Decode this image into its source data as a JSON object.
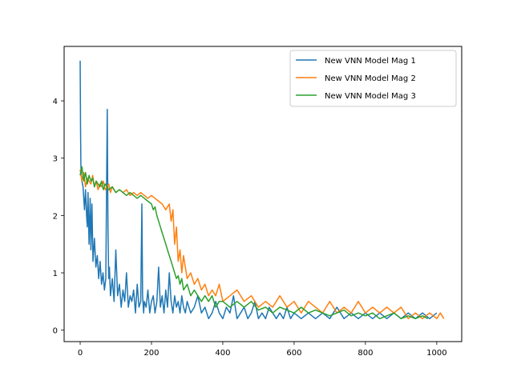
{
  "chart_data": {
    "type": "line",
    "title": "",
    "xlabel": "",
    "ylabel": "",
    "xlim": [
      -45,
      1070
    ],
    "ylim": [
      -0.2,
      4.95
    ],
    "xticks": [
      0,
      200,
      400,
      600,
      800,
      1000
    ],
    "yticks": [
      0,
      1,
      2,
      3,
      4
    ],
    "grid": false,
    "legend_position": "top-right",
    "series": [
      {
        "name": "New VNN Model Mag 1",
        "color": "#1f77b4",
        "x": [
          0,
          1,
          2,
          3,
          5,
          8,
          10,
          12,
          15,
          18,
          20,
          22,
          25,
          28,
          30,
          33,
          36,
          40,
          44,
          48,
          52,
          56,
          60,
          64,
          68,
          72,
          76,
          78,
          80,
          82,
          85,
          90,
          95,
          100,
          105,
          110,
          115,
          120,
          125,
          130,
          135,
          140,
          145,
          150,
          155,
          160,
          165,
          170,
          173,
          175,
          178,
          180,
          185,
          190,
          195,
          200,
          205,
          210,
          215,
          220,
          225,
          230,
          235,
          240,
          245,
          250,
          255,
          260,
          265,
          270,
          275,
          280,
          285,
          290,
          295,
          300,
          310,
          320,
          330,
          340,
          350,
          360,
          370,
          380,
          390,
          400,
          410,
          420,
          430,
          440,
          450,
          460,
          470,
          480,
          490,
          500,
          510,
          520,
          530,
          540,
          550,
          560,
          570,
          580,
          590,
          600,
          620,
          640,
          660,
          680,
          700,
          720,
          740,
          760,
          780,
          800,
          820,
          840,
          860,
          880,
          900,
          920,
          940,
          960,
          980,
          1000
        ],
        "y": [
          4.7,
          3.5,
          2.9,
          2.7,
          2.6,
          2.5,
          2.3,
          2.1,
          2.45,
          2.0,
          1.8,
          2.4,
          1.5,
          2.3,
          1.4,
          2.2,
          1.2,
          1.6,
          1.1,
          1.3,
          0.9,
          1.2,
          0.8,
          1.0,
          0.7,
          0.9,
          3.85,
          1.8,
          0.9,
          1.1,
          0.6,
          0.9,
          0.5,
          1.4,
          0.6,
          0.8,
          0.4,
          0.7,
          0.5,
          1.0,
          0.4,
          0.6,
          0.5,
          0.7,
          0.3,
          0.8,
          0.4,
          0.5,
          2.2,
          0.6,
          0.3,
          0.5,
          0.4,
          0.7,
          0.3,
          0.5,
          0.6,
          0.3,
          0.5,
          1.1,
          0.4,
          0.6,
          0.3,
          0.7,
          0.4,
          1.0,
          0.5,
          0.3,
          0.6,
          0.4,
          0.5,
          0.3,
          0.6,
          0.4,
          0.3,
          0.5,
          0.3,
          0.4,
          0.6,
          0.3,
          0.4,
          0.2,
          0.3,
          0.5,
          0.3,
          0.2,
          0.4,
          0.3,
          0.6,
          0.2,
          0.3,
          0.4,
          0.2,
          0.3,
          0.5,
          0.2,
          0.3,
          0.2,
          0.4,
          0.3,
          0.2,
          0.3,
          0.2,
          0.4,
          0.2,
          0.3,
          0.2,
          0.3,
          0.2,
          0.3,
          0.2,
          0.4,
          0.2,
          0.3,
          0.2,
          0.3,
          0.2,
          0.3,
          0.2,
          0.3,
          0.2,
          0.3,
          0.2,
          0.3,
          0.2,
          0.3
        ]
      },
      {
        "name": "New VNN Model Mag 2",
        "color": "#ff7f0e",
        "x": [
          0,
          5,
          10,
          15,
          20,
          25,
          30,
          35,
          40,
          45,
          50,
          55,
          60,
          65,
          70,
          75,
          80,
          85,
          90,
          95,
          100,
          110,
          120,
          130,
          140,
          150,
          160,
          170,
          180,
          190,
          200,
          210,
          220,
          230,
          240,
          250,
          255,
          260,
          265,
          270,
          275,
          280,
          285,
          290,
          295,
          300,
          310,
          320,
          330,
          340,
          350,
          360,
          370,
          380,
          390,
          400,
          420,
          440,
          460,
          480,
          500,
          520,
          540,
          560,
          580,
          600,
          620,
          640,
          660,
          680,
          700,
          720,
          740,
          760,
          780,
          800,
          820,
          840,
          860,
          880,
          900,
          920,
          940,
          960,
          980,
          1000,
          1010,
          1020
        ],
        "y": [
          2.8,
          2.6,
          2.75,
          2.5,
          2.65,
          2.6,
          2.55,
          2.7,
          2.5,
          2.6,
          2.45,
          2.55,
          2.5,
          2.6,
          2.45,
          2.5,
          2.55,
          2.4,
          2.5,
          2.45,
          2.4,
          2.45,
          2.4,
          2.45,
          2.35,
          2.4,
          2.35,
          2.4,
          2.35,
          2.3,
          2.35,
          2.3,
          2.25,
          2.2,
          2.1,
          2.2,
          1.9,
          2.1,
          1.5,
          1.8,
          1.2,
          1.4,
          1.0,
          1.3,
          1.1,
          0.9,
          1.0,
          0.8,
          0.9,
          0.7,
          0.8,
          0.6,
          0.7,
          0.6,
          0.8,
          0.5,
          0.6,
          0.7,
          0.5,
          0.6,
          0.4,
          0.5,
          0.4,
          0.6,
          0.4,
          0.5,
          0.3,
          0.5,
          0.4,
          0.3,
          0.5,
          0.3,
          0.4,
          0.3,
          0.5,
          0.3,
          0.4,
          0.3,
          0.4,
          0.3,
          0.4,
          0.2,
          0.3,
          0.2,
          0.3,
          0.2,
          0.3,
          0.2
        ]
      },
      {
        "name": "New VNN Model Mag 3",
        "color": "#2ca02c",
        "x": [
          0,
          5,
          10,
          15,
          20,
          25,
          30,
          35,
          40,
          45,
          50,
          55,
          60,
          65,
          70,
          75,
          80,
          90,
          100,
          110,
          120,
          130,
          140,
          150,
          160,
          170,
          180,
          190,
          200,
          205,
          210,
          215,
          220,
          225,
          230,
          235,
          240,
          245,
          250,
          255,
          260,
          265,
          270,
          275,
          280,
          285,
          290,
          300,
          310,
          320,
          330,
          340,
          350,
          360,
          370,
          380,
          390,
          400,
          420,
          440,
          460,
          480,
          500,
          520,
          540,
          560,
          580,
          600,
          620,
          640,
          660,
          680,
          700,
          720,
          740,
          760,
          780,
          800,
          820,
          840,
          860,
          880,
          900,
          920,
          940,
          960,
          975
        ],
        "y": [
          2.7,
          2.85,
          2.6,
          2.75,
          2.55,
          2.7,
          2.6,
          2.65,
          2.5,
          2.6,
          2.55,
          2.5,
          2.6,
          2.45,
          2.55,
          2.5,
          2.45,
          2.5,
          2.4,
          2.45,
          2.4,
          2.35,
          2.4,
          2.35,
          2.3,
          2.35,
          2.3,
          2.25,
          2.2,
          2.1,
          2.15,
          2.0,
          1.9,
          1.8,
          1.7,
          1.6,
          1.5,
          1.4,
          1.3,
          1.2,
          1.1,
          1.0,
          0.9,
          0.95,
          0.8,
          0.9,
          0.7,
          0.8,
          0.6,
          0.7,
          0.6,
          0.5,
          0.6,
          0.5,
          0.6,
          0.4,
          0.5,
          0.5,
          0.4,
          0.5,
          0.4,
          0.5,
          0.35,
          0.4,
          0.3,
          0.4,
          0.35,
          0.3,
          0.4,
          0.3,
          0.35,
          0.3,
          0.25,
          0.3,
          0.35,
          0.25,
          0.3,
          0.25,
          0.3,
          0.2,
          0.25,
          0.3,
          0.2,
          0.25,
          0.2,
          0.25,
          0.2
        ]
      }
    ]
  }
}
